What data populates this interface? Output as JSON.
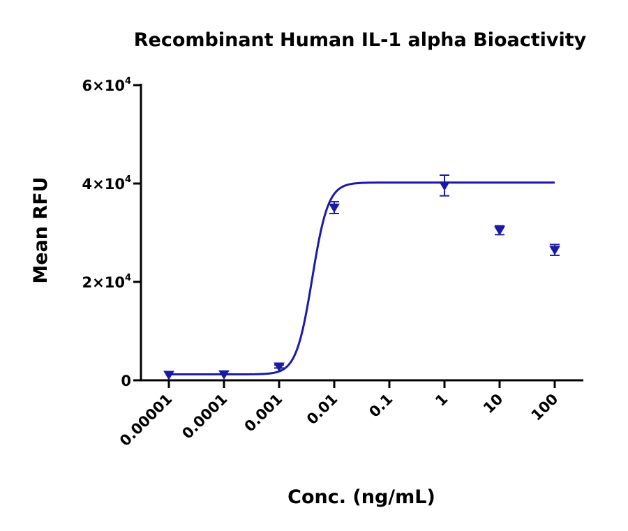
{
  "chart_data": {
    "type": "scatter",
    "title": "Recombinant Human IL-1 alpha Bioactivity",
    "xlabel": "Conc. (ng/mL)",
    "ylabel": "Mean RFU",
    "x_scale": "log10",
    "xlim": [
      1e-05,
      100
    ],
    "ylim": [
      0,
      60000
    ],
    "x_ticks": [
      {
        "value": 1e-05,
        "label": "0.00001"
      },
      {
        "value": 0.0001,
        "label": "0.0001"
      },
      {
        "value": 0.001,
        "label": "0.001"
      },
      {
        "value": 0.01,
        "label": "0.01"
      },
      {
        "value": 0.1,
        "label": "0.1"
      },
      {
        "value": 1,
        "label": "1"
      },
      {
        "value": 10,
        "label": "10"
      },
      {
        "value": 100,
        "label": "100"
      }
    ],
    "y_ticks": [
      {
        "value": 0,
        "mantissa": "0",
        "exponent": ""
      },
      {
        "value": 20000,
        "mantissa": "2×10",
        "exponent": "4"
      },
      {
        "value": 40000,
        "mantissa": "4×10",
        "exponent": "4"
      },
      {
        "value": 60000,
        "mantissa": "6×10",
        "exponent": "4"
      }
    ],
    "grid": false,
    "series": [
      {
        "marker": "inverted-triangle",
        "color": "#1a1aa6",
        "points": [
          {
            "x": 1e-05,
            "y": 1100,
            "err": 0
          },
          {
            "x": 0.0001,
            "y": 1200,
            "err": 0
          },
          {
            "x": 0.001,
            "y": 2800,
            "err": 300
          },
          {
            "x": 0.01,
            "y": 35100,
            "err": 1200
          },
          {
            "x": 1,
            "y": 39600,
            "err": 2100
          },
          {
            "x": 10,
            "y": 30500,
            "err": 900
          },
          {
            "x": 100,
            "y": 26500,
            "err": 1100
          }
        ]
      }
    ],
    "fit": {
      "model": "four-parameter logistic",
      "bottom": 1200,
      "top": 40200,
      "log_ec50": -2.4,
      "hill": 3.0,
      "x_range": [
        1e-05,
        100
      ],
      "color": "#1a1aa6"
    }
  }
}
